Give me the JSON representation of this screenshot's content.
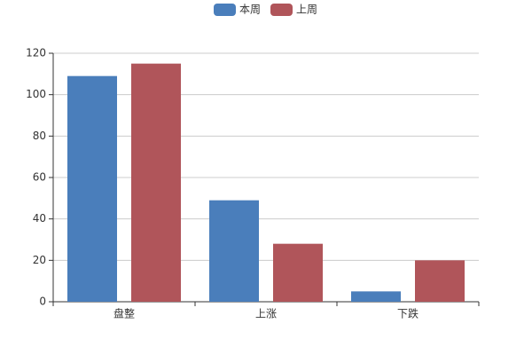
{
  "chart_data": {
    "type": "bar",
    "categories": [
      "盘整",
      "上涨",
      "下跌"
    ],
    "series": [
      {
        "name": "本周",
        "color": "#4a7ebb",
        "values": [
          109,
          49,
          5
        ]
      },
      {
        "name": "上周",
        "color": "#b0555a",
        "values": [
          115,
          28,
          20
        ]
      }
    ],
    "ylim": [
      0,
      120
    ],
    "yticks": [
      0,
      20,
      40,
      60,
      80,
      100,
      120
    ],
    "grid": true
  }
}
